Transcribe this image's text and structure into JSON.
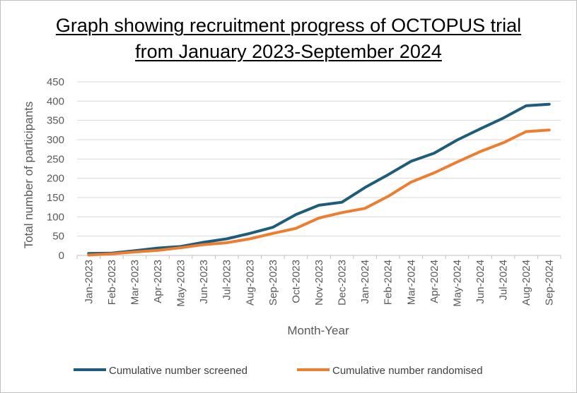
{
  "chart_data": {
    "type": "line",
    "title_line1": "Graph showing recruitment progress of OCTOPUS trial",
    "title_line2": "from January 2023-September 2024",
    "xlabel": "Month-Year",
    "ylabel": "Total number of participants",
    "ylim": [
      0,
      450
    ],
    "yticks": [
      0,
      50,
      100,
      150,
      200,
      250,
      300,
      350,
      400,
      450
    ],
    "grid": true,
    "legend_position": "bottom",
    "categories": [
      "Jan-2023",
      "Feb-2023",
      "Mar-2023",
      "Apr-2023",
      "May-2023",
      "Jun-2023",
      "Jul-2023",
      "Aug-2023",
      "Sep-2023",
      "Oct-2023",
      "Nov-2023",
      "Dec-2023",
      "Jan-2024",
      "Feb-2024",
      "Mar-2024",
      "Apr-2024",
      "May-2024",
      "Jun-2024",
      "Jul-2024",
      "Aug-2024",
      "Sep-2024"
    ],
    "series": [
      {
        "name": "Cumulative number screened",
        "color": "#1f5c79",
        "values": [
          5,
          6,
          12,
          19,
          23,
          34,
          43,
          57,
          73,
          106,
          130,
          138,
          176,
          209,
          244,
          265,
          299,
          328,
          356,
          388,
          392
        ]
      },
      {
        "name": "Cumulative number randomised",
        "color": "#ed7d31",
        "values": [
          1,
          4,
          9,
          13,
          20,
          28,
          33,
          43,
          57,
          70,
          97,
          111,
          122,
          153,
          190,
          214,
          242,
          269,
          292,
          321,
          325
        ]
      }
    ]
  }
}
